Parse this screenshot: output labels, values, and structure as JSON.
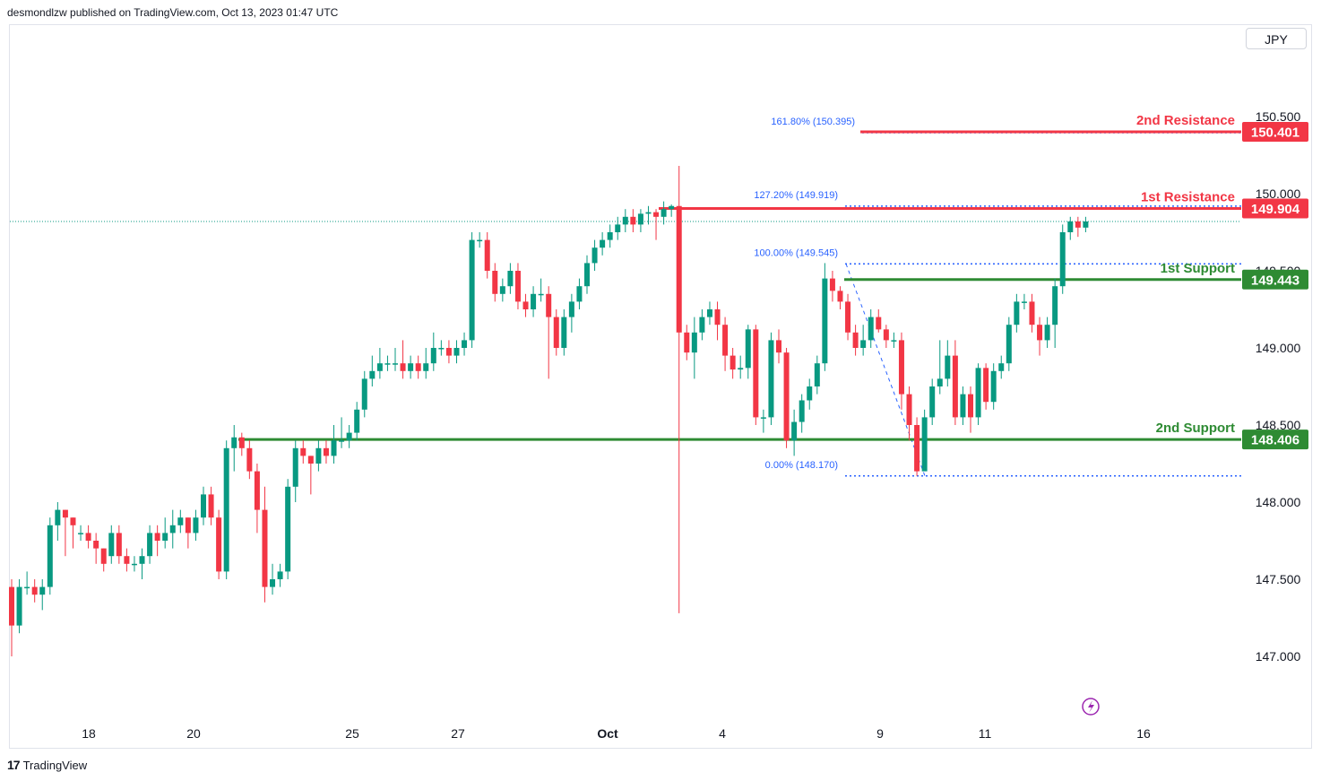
{
  "header": {
    "byline": "desmondlzw published on TradingView.com, Oct 13, 2023 01:47 UTC"
  },
  "currency_button": "JPY",
  "footer": {
    "brand": "TradingView",
    "logo_glyph": "17"
  },
  "colors": {
    "up": "#089981",
    "down": "#f23645",
    "support": "#2e8b33",
    "resistance": "#f23645",
    "fib": "#2962ff"
  },
  "chart_data": {
    "type": "candlestick",
    "symbol_currency": "JPY",
    "y_ticks": [
      "150.500",
      "150.000",
      "149.500",
      "149.000",
      "148.500",
      "148.000",
      "147.500",
      "147.000"
    ],
    "x_ticks": [
      "18",
      "20",
      "25",
      "27",
      "Oct",
      "4",
      "9",
      "11",
      "16"
    ],
    "ylim": [
      146.8,
      150.9
    ],
    "levels": [
      {
        "name": "2nd Resistance",
        "value": 150.401,
        "label": "150.401",
        "kind": "resistance"
      },
      {
        "name": "1st Resistance",
        "value": 149.904,
        "label": "149.904",
        "kind": "resistance"
      },
      {
        "name": "1st Support",
        "value": 149.443,
        "label": "149.443",
        "kind": "support"
      },
      {
        "name": "2nd Support",
        "value": 148.406,
        "label": "148.406",
        "kind": "support"
      }
    ],
    "fib_levels": [
      {
        "label": "161.80% (150.395)",
        "value": 150.395
      },
      {
        "label": "127.20% (149.919)",
        "value": 149.919
      },
      {
        "label": "100.00% (149.545)",
        "value": 149.545
      },
      {
        "label": "0.00% (148.170)",
        "value": 148.17
      }
    ],
    "last_price": 149.82,
    "candles": [
      [
        147.45,
        147.2,
        147.5,
        147.0
      ],
      [
        147.2,
        147.45,
        147.5,
        147.15
      ],
      [
        147.45,
        147.45,
        147.55,
        147.4
      ],
      [
        147.45,
        147.4,
        147.5,
        147.35
      ],
      [
        147.4,
        147.45,
        147.5,
        147.3
      ],
      [
        147.45,
        147.85,
        147.9,
        147.4
      ],
      [
        147.85,
        147.95,
        148.0,
        147.75
      ],
      [
        147.95,
        147.9,
        147.95,
        147.65
      ],
      [
        147.9,
        147.85,
        147.9,
        147.7
      ],
      [
        147.8,
        147.8,
        147.85,
        147.75
      ],
      [
        147.8,
        147.75,
        147.85,
        147.7
      ],
      [
        147.75,
        147.7,
        147.8,
        147.6
      ],
      [
        147.7,
        147.6,
        147.7,
        147.55
      ],
      [
        147.65,
        147.8,
        147.85,
        147.6
      ],
      [
        147.8,
        147.65,
        147.85,
        147.6
      ],
      [
        147.65,
        147.6,
        147.7,
        147.55
      ],
      [
        147.6,
        147.6,
        147.65,
        147.55
      ],
      [
        147.6,
        147.65,
        147.7,
        147.5
      ],
      [
        147.65,
        147.8,
        147.85,
        147.6
      ],
      [
        147.8,
        147.75,
        147.85,
        147.65
      ],
      [
        147.75,
        147.8,
        147.9,
        147.7
      ],
      [
        147.8,
        147.85,
        147.95,
        147.7
      ],
      [
        147.85,
        147.9,
        147.95,
        147.8
      ],
      [
        147.9,
        147.8,
        147.9,
        147.7
      ],
      [
        147.8,
        147.9,
        147.95,
        147.75
      ],
      [
        147.9,
        148.05,
        148.1,
        147.85
      ],
      [
        148.05,
        147.9,
        148.1,
        147.85
      ],
      [
        147.9,
        147.55,
        147.95,
        147.5
      ],
      [
        147.55,
        148.35,
        148.4,
        147.5
      ],
      [
        148.35,
        148.42,
        148.5,
        148.2
      ],
      [
        148.42,
        148.35,
        148.45,
        148.3
      ],
      [
        148.35,
        148.2,
        148.4,
        148.15
      ],
      [
        148.2,
        147.95,
        148.25,
        147.8
      ],
      [
        147.95,
        147.45,
        148.1,
        147.35
      ],
      [
        147.45,
        147.5,
        147.6,
        147.4
      ],
      [
        147.5,
        147.55,
        147.6,
        147.45
      ],
      [
        147.55,
        148.1,
        148.15,
        147.5
      ],
      [
        148.1,
        148.35,
        148.4,
        148.0
      ],
      [
        148.35,
        148.3,
        148.4,
        148.25
      ],
      [
        148.3,
        148.25,
        148.3,
        148.05
      ],
      [
        148.25,
        148.35,
        148.4,
        148.2
      ],
      [
        148.35,
        148.3,
        148.4,
        148.25
      ],
      [
        148.3,
        148.4,
        148.5,
        148.25
      ],
      [
        148.4,
        148.4,
        148.55,
        148.35
      ],
      [
        148.4,
        148.45,
        148.5,
        148.35
      ],
      [
        148.45,
        148.6,
        148.65,
        148.4
      ],
      [
        148.6,
        148.8,
        148.85,
        148.55
      ],
      [
        148.8,
        148.85,
        148.95,
        148.75
      ],
      [
        148.85,
        148.9,
        149.0,
        148.8
      ],
      [
        148.9,
        148.9,
        148.95,
        148.85
      ],
      [
        148.9,
        148.9,
        149.0,
        148.85
      ],
      [
        148.9,
        148.85,
        149.05,
        148.8
      ],
      [
        148.85,
        148.9,
        148.95,
        148.8
      ],
      [
        148.9,
        148.85,
        148.95,
        148.8
      ],
      [
        148.85,
        148.9,
        149.0,
        148.8
      ],
      [
        148.9,
        149.0,
        149.1,
        148.85
      ],
      [
        149.0,
        149.0,
        149.05,
        148.95
      ],
      [
        149.0,
        148.95,
        149.05,
        148.9
      ],
      [
        148.95,
        149.0,
        149.05,
        148.9
      ],
      [
        149.0,
        149.05,
        149.1,
        148.95
      ],
      [
        149.05,
        149.7,
        149.75,
        149.0
      ],
      [
        149.7,
        149.7,
        149.75,
        149.65
      ],
      [
        149.7,
        149.5,
        149.75,
        149.45
      ],
      [
        149.5,
        149.35,
        149.55,
        149.3
      ],
      [
        149.35,
        149.4,
        149.45,
        149.3
      ],
      [
        149.4,
        149.5,
        149.55,
        149.35
      ],
      [
        149.5,
        149.3,
        149.55,
        149.25
      ],
      [
        149.3,
        149.25,
        149.35,
        149.2
      ],
      [
        149.25,
        149.35,
        149.4,
        149.2
      ],
      [
        149.35,
        149.35,
        149.45,
        149.3
      ],
      [
        149.35,
        149.2,
        149.4,
        148.8
      ],
      [
        149.2,
        149.0,
        149.25,
        148.95
      ],
      [
        149.0,
        149.2,
        149.25,
        148.95
      ],
      [
        149.2,
        149.3,
        149.35,
        149.1
      ],
      [
        149.3,
        149.4,
        149.45,
        149.25
      ],
      [
        149.4,
        149.55,
        149.6,
        149.35
      ],
      [
        149.55,
        149.65,
        149.7,
        149.5
      ],
      [
        149.65,
        149.7,
        149.75,
        149.6
      ],
      [
        149.7,
        149.75,
        149.8,
        149.65
      ],
      [
        149.75,
        149.8,
        149.85,
        149.7
      ],
      [
        149.8,
        149.85,
        149.9,
        149.75
      ],
      [
        149.85,
        149.8,
        149.9,
        149.75
      ],
      [
        149.8,
        149.87,
        149.9,
        149.75
      ],
      [
        149.87,
        149.88,
        149.92,
        149.8
      ],
      [
        149.88,
        149.85,
        149.9,
        149.7
      ],
      [
        149.85,
        149.9,
        149.95,
        149.8
      ],
      [
        149.9,
        149.92,
        149.93,
        149.85
      ],
      [
        149.92,
        149.1,
        150.18,
        147.28
      ],
      [
        149.1,
        148.97,
        149.15,
        148.92
      ],
      [
        148.97,
        149.1,
        149.2,
        148.8
      ],
      [
        149.1,
        149.2,
        149.25,
        149.05
      ],
      [
        149.2,
        149.25,
        149.3,
        149.15
      ],
      [
        149.25,
        149.15,
        149.3,
        149.05
      ],
      [
        149.15,
        148.95,
        149.2,
        148.85
      ],
      [
        148.95,
        148.86,
        149.0,
        148.8
      ],
      [
        148.86,
        148.87,
        148.95,
        148.8
      ],
      [
        148.87,
        149.12,
        149.15,
        148.8
      ],
      [
        149.12,
        148.55,
        149.15,
        148.5
      ],
      [
        148.55,
        148.55,
        148.6,
        148.45
      ],
      [
        148.55,
        149.05,
        149.1,
        148.5
      ],
      [
        149.05,
        148.97,
        149.12,
        148.9
      ],
      [
        148.97,
        148.4,
        149.0,
        148.35
      ],
      [
        148.4,
        148.52,
        148.6,
        148.3
      ],
      [
        148.52,
        148.66,
        148.7,
        148.45
      ],
      [
        148.66,
        148.75,
        148.8,
        148.6
      ],
      [
        148.75,
        148.9,
        148.95,
        148.7
      ],
      [
        148.9,
        149.45,
        149.55,
        148.85
      ],
      [
        149.45,
        149.37,
        149.5,
        149.3
      ],
      [
        149.37,
        149.3,
        149.4,
        149.25
      ],
      [
        149.3,
        149.1,
        149.35,
        149.05
      ],
      [
        149.1,
        149.0,
        149.15,
        148.95
      ],
      [
        149.0,
        149.05,
        149.15,
        148.95
      ],
      [
        149.05,
        149.2,
        149.25,
        149.0
      ],
      [
        149.2,
        149.12,
        149.25,
        149.1
      ],
      [
        149.12,
        149.05,
        149.15,
        149.0
      ],
      [
        149.05,
        149.05,
        149.1,
        149.0
      ],
      [
        149.05,
        148.7,
        149.1,
        148.6
      ],
      [
        148.7,
        148.5,
        148.75,
        148.4
      ],
      [
        148.5,
        148.2,
        148.55,
        148.17
      ],
      [
        148.2,
        148.55,
        148.6,
        148.3
      ],
      [
        148.55,
        148.75,
        148.8,
        148.5
      ],
      [
        148.75,
        148.8,
        149.05,
        148.7
      ],
      [
        148.8,
        148.95,
        149.05,
        148.75
      ],
      [
        148.95,
        148.55,
        149.05,
        148.5
      ],
      [
        148.55,
        148.7,
        148.75,
        148.5
      ],
      [
        148.7,
        148.55,
        148.75,
        148.45
      ],
      [
        148.55,
        148.87,
        148.9,
        148.5
      ],
      [
        148.87,
        148.65,
        148.9,
        148.6
      ],
      [
        148.65,
        148.85,
        148.9,
        148.6
      ],
      [
        148.85,
        148.9,
        148.95,
        148.8
      ],
      [
        148.9,
        149.15,
        149.2,
        148.85
      ],
      [
        149.15,
        149.3,
        149.35,
        149.1
      ],
      [
        149.3,
        149.3,
        149.35,
        149.25
      ],
      [
        149.3,
        149.15,
        149.35,
        149.1
      ],
      [
        149.15,
        149.05,
        149.2,
        148.95
      ],
      [
        149.05,
        149.15,
        149.2,
        149.0
      ],
      [
        149.15,
        149.4,
        149.45,
        149.0
      ],
      [
        149.4,
        149.75,
        149.8,
        149.35
      ],
      [
        149.75,
        149.82,
        149.85,
        149.7
      ],
      [
        149.82,
        149.78,
        149.85,
        149.72
      ],
      [
        149.78,
        149.82,
        149.85,
        149.75
      ]
    ]
  }
}
